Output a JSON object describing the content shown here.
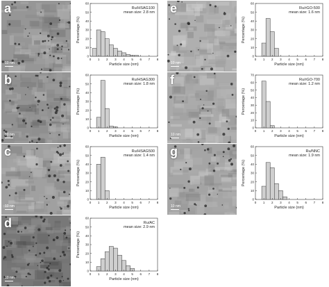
{
  "panels": [
    {
      "letter": "a",
      "scale_bar": "10 nm"
    },
    {
      "letter": "b",
      "scale_bar": "10 nm"
    },
    {
      "letter": "c",
      "scale_bar": "10 nm"
    },
    {
      "letter": "d",
      "scale_bar": "10 nm"
    },
    {
      "letter": "e",
      "scale_bar": "10 nm"
    },
    {
      "letter": "f",
      "scale_bar": "10 nm"
    },
    {
      "letter": "g",
      "scale_bar": "10 nm"
    }
  ],
  "chart_data": [
    {
      "type": "bar",
      "label": "Ru/HSAG100",
      "mean": "mean size: 2.8 nm",
      "xlabel": "Particle size (nm)",
      "ylabel": "Percentage (%)",
      "xlim": [
        0,
        8
      ],
      "ylim": [
        0,
        60
      ],
      "xticks": [
        0,
        1,
        2,
        3,
        4,
        5,
        6,
        7,
        8
      ],
      "yticks": [
        0,
        10,
        20,
        30,
        40,
        50,
        60
      ],
      "bin_width": 0.5,
      "x": [
        0.5,
        1,
        1.5,
        2,
        2.5,
        3,
        3.5,
        4,
        4.5,
        5,
        5.5
      ],
      "values": [
        9,
        30,
        28,
        20,
        13,
        9,
        6,
        4,
        2,
        1,
        1
      ]
    },
    {
      "type": "bar",
      "label": "Ru/HSAG300",
      "mean": "mean size: 1.8 nm",
      "xlabel": "Particle size (nm)",
      "ylabel": "Percentage (%)",
      "xlim": [
        0,
        8
      ],
      "ylim": [
        0,
        60
      ],
      "xticks": [
        0,
        1,
        2,
        3,
        4,
        5,
        6,
        7,
        8
      ],
      "yticks": [
        0,
        10,
        20,
        30,
        40,
        50,
        60
      ],
      "bin_width": 0.5,
      "x": [
        1,
        1.5,
        2,
        2.5,
        3
      ],
      "values": [
        12,
        54,
        22,
        2,
        1
      ]
    },
    {
      "type": "bar",
      "label": "Ru/HSAG500",
      "mean": "mean size: 1.4 nm",
      "xlabel": "Particle size (nm)",
      "ylabel": "Percentage (%)",
      "xlim": [
        0,
        8
      ],
      "ylim": [
        0,
        60
      ],
      "xticks": [
        0,
        1,
        2,
        3,
        4,
        5,
        6,
        7,
        8
      ],
      "yticks": [
        0,
        10,
        20,
        30,
        40,
        50,
        60
      ],
      "bin_width": 0.5,
      "x": [
        1,
        1.5,
        2
      ],
      "values": [
        40,
        48,
        10
      ]
    },
    {
      "type": "bar",
      "label": "Ru/AC",
      "mean": "mean size: 2.9 nm",
      "xlabel": "Particle size (nm)",
      "ylabel": "Percentage (%)",
      "xlim": [
        0,
        8
      ],
      "ylim": [
        0,
        60
      ],
      "xticks": [
        0,
        1,
        2,
        3,
        4,
        5,
        6,
        7,
        8
      ],
      "yticks": [
        0,
        10,
        20,
        30,
        40,
        50,
        60
      ],
      "bin_width": 0.5,
      "x": [
        1,
        1.5,
        2,
        2.5,
        3,
        3.5,
        4,
        4.5,
        5
      ],
      "values": [
        5,
        14,
        22,
        28,
        26,
        18,
        12,
        6,
        3
      ]
    },
    {
      "type": "bar",
      "label": "Ru/rGO-500",
      "mean": "mean size: 1.6 nm",
      "xlabel": "Particle size (nm)",
      "ylabel": "Percentage (%)",
      "xlim": [
        0,
        8
      ],
      "ylim": [
        0,
        60
      ],
      "xticks": [
        0,
        1,
        2,
        3,
        4,
        5,
        6,
        7,
        8
      ],
      "yticks": [
        0,
        10,
        20,
        30,
        40,
        50,
        60
      ],
      "bin_width": 0.5,
      "x": [
        1,
        1.5,
        2,
        2.5
      ],
      "values": [
        15,
        43,
        28,
        9
      ]
    },
    {
      "type": "bar",
      "label": "Ru/rGO-700",
      "mean": "mean size: 1.2 nm",
      "xlabel": "Particle size (nm)",
      "ylabel": "Percentage (%)",
      "xlim": [
        0,
        8
      ],
      "ylim": [
        0,
        70
      ],
      "xticks": [
        0,
        1,
        2,
        3,
        4,
        5,
        6,
        7,
        8
      ],
      "yticks": [
        0,
        10,
        20,
        30,
        40,
        50,
        60,
        70
      ],
      "bin_width": 0.5,
      "x": [
        1,
        1.5,
        2
      ],
      "values": [
        62,
        35,
        3
      ]
    },
    {
      "type": "bar",
      "label": "Ru/NNC",
      "mean": "mean size: 1.9 nm",
      "xlabel": "Particle size (nm)",
      "ylabel": "Percentage (%)",
      "xlim": [
        0,
        8
      ],
      "ylim": [
        0,
        60
      ],
      "xticks": [
        0,
        1,
        2,
        3,
        4,
        5,
        6,
        7,
        8
      ],
      "yticks": [
        0,
        10,
        20,
        30,
        40,
        50,
        60
      ],
      "bin_width": 0.5,
      "x": [
        1,
        1.5,
        2,
        2.5,
        3,
        3.5
      ],
      "values": [
        15,
        42,
        36,
        18,
        10,
        3
      ]
    }
  ]
}
